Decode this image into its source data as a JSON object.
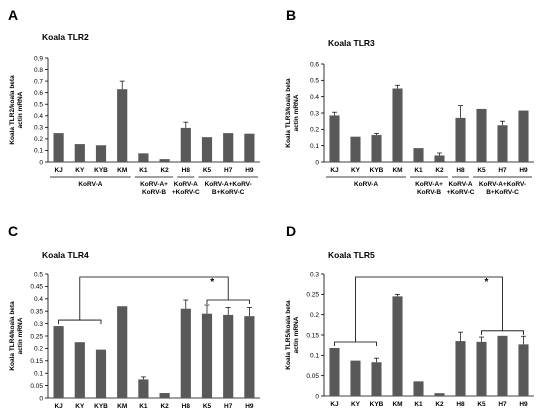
{
  "panel_title_prefix": "Koala",
  "bar_color": "#595959",
  "chart_data": [
    {
      "type": "bar",
      "panel": "A",
      "title": "Koala TLR2",
      "ylabel": [
        "Koala TLR2/koala beta",
        "actin mRNA"
      ],
      "ylim": [
        0,
        0.9
      ],
      "yticks": [
        0,
        0.1,
        0.2,
        0.3,
        0.4,
        0.5,
        0.6,
        0.7,
        0.8,
        0.9
      ],
      "categories": [
        "KJ",
        "KY",
        "KYB",
        "KM",
        "K1",
        "K2",
        "H8",
        "K5",
        "H7",
        "H9"
      ],
      "values": [
        0.25,
        0.155,
        0.145,
        0.63,
        0.075,
        0.025,
        0.295,
        0.215,
        0.25,
        0.245
      ],
      "errors": [
        0,
        0,
        0,
        0.07,
        0,
        0,
        0.05,
        0,
        0,
        0
      ],
      "groups": [
        {
          "lines": [
            "KoRV-A"
          ],
          "from": 0,
          "to": 3
        },
        {
          "lines": [
            "KoRV-A+",
            "KoRV-B"
          ],
          "from": 4,
          "to": 5
        },
        {
          "lines": [
            "KoRV-A",
            "+KoRV-C"
          ],
          "from": 6,
          "to": 6
        },
        {
          "lines": [
            "KoRV-A+KoRV-",
            "B+KoRV-C"
          ],
          "from": 7,
          "to": 9
        }
      ],
      "significance": []
    },
    {
      "type": "bar",
      "panel": "B",
      "title": "Koala TLR3",
      "ylabel": [
        "Koala TLR3/koala beta",
        "actin mRNA"
      ],
      "ylim": [
        0,
        0.6
      ],
      "yticks": [
        0,
        0.1,
        0.2,
        0.3,
        0.4,
        0.5,
        0.6
      ],
      "categories": [
        "KJ",
        "KY",
        "KYB",
        "KM",
        "K1",
        "K2",
        "H8",
        "K5",
        "H7",
        "H9"
      ],
      "values": [
        0.285,
        0.155,
        0.165,
        0.45,
        0.085,
        0.04,
        0.27,
        0.325,
        0.225,
        0.315
      ],
      "errors": [
        0.02,
        0,
        0.01,
        0.02,
        0,
        0.015,
        0.075,
        0,
        0.025,
        0
      ],
      "groups": [
        {
          "lines": [
            "KoRV-A"
          ],
          "from": 0,
          "to": 3
        },
        {
          "lines": [
            "KoRV-A+",
            "KoRV-B"
          ],
          "from": 4,
          "to": 5
        },
        {
          "lines": [
            "KoRV-A",
            "+KoRV-C"
          ],
          "from": 6,
          "to": 6
        },
        {
          "lines": [
            "KoRV-A+KoRV-",
            "B+KoRV-C"
          ],
          "from": 7,
          "to": 9
        }
      ],
      "significance": []
    },
    {
      "type": "bar",
      "panel": "C",
      "title": "Koala TLR4",
      "ylabel": [
        "Koala TLR4/koala beta",
        "actin mRNA"
      ],
      "ylim": [
        0,
        0.5
      ],
      "yticks": [
        0,
        0.05,
        0.1,
        0.15,
        0.2,
        0.25,
        0.3,
        0.35,
        0.4,
        0.45,
        0.5
      ],
      "categories": [
        "KJ",
        "KY",
        "KYB",
        "KM",
        "K1",
        "K2",
        "H8",
        "K5",
        "H7",
        "H9"
      ],
      "values": [
        0.29,
        0.225,
        0.195,
        0.37,
        0.075,
        0.02,
        0.36,
        0.34,
        0.335,
        0.33
      ],
      "errors": [
        0,
        0,
        0,
        0,
        0.01,
        0,
        0.035,
        0.035,
        0.03,
        0.035
      ],
      "groups": [
        {
          "lines": [
            "KoRV-A"
          ],
          "from": 0,
          "to": 3
        },
        {
          "lines": [
            "KoRV-A+",
            "KoRV-B"
          ],
          "from": 4,
          "to": 5
        },
        {
          "lines": [
            "KoRV-A",
            "+KoRV-C"
          ],
          "from": 6,
          "to": 6
        },
        {
          "lines": [
            "KoRV-A+KoRV-",
            "B+KoRV-C"
          ],
          "from": 7,
          "to": 9
        }
      ],
      "significance": [
        {
          "from_group": [
            0,
            2
          ],
          "to_group": [
            7,
            9
          ],
          "label": "*"
        }
      ]
    },
    {
      "type": "bar",
      "panel": "D",
      "title": "Koala TLR5",
      "ylabel": [
        "Koala TLR5/koala beta",
        "actin mRNA"
      ],
      "ylim": [
        0,
        0.3
      ],
      "yticks": [
        0,
        0.05,
        0.1,
        0.15,
        0.2,
        0.25,
        0.3
      ],
      "categories": [
        "KJ",
        "KY",
        "KYB",
        "KM",
        "K1",
        "K2",
        "H8",
        "K5",
        "H7",
        "H9"
      ],
      "values": [
        0.118,
        0.087,
        0.083,
        0.245,
        0.036,
        0.007,
        0.135,
        0.133,
        0.148,
        0.127
      ],
      "errors": [
        0,
        0,
        0.01,
        0.005,
        0,
        0,
        0.022,
        0.012,
        0,
        0.02
      ],
      "groups": [
        {
          "lines": [
            "KoRV-A"
          ],
          "from": 0,
          "to": 3
        },
        {
          "lines": [
            "KoRV-A+",
            "KoRV-B"
          ],
          "from": 4,
          "to": 5
        },
        {
          "lines": [
            "KoRV-A",
            "+KoRV-C"
          ],
          "from": 6,
          "to": 6
        },
        {
          "lines": [
            "KoRV-A+KoRV-",
            "B+KoRV-C"
          ],
          "from": 7,
          "to": 9
        }
      ],
      "significance": [
        {
          "from_group": [
            0,
            2
          ],
          "to_group": [
            7,
            9
          ],
          "label": "*"
        }
      ]
    }
  ]
}
